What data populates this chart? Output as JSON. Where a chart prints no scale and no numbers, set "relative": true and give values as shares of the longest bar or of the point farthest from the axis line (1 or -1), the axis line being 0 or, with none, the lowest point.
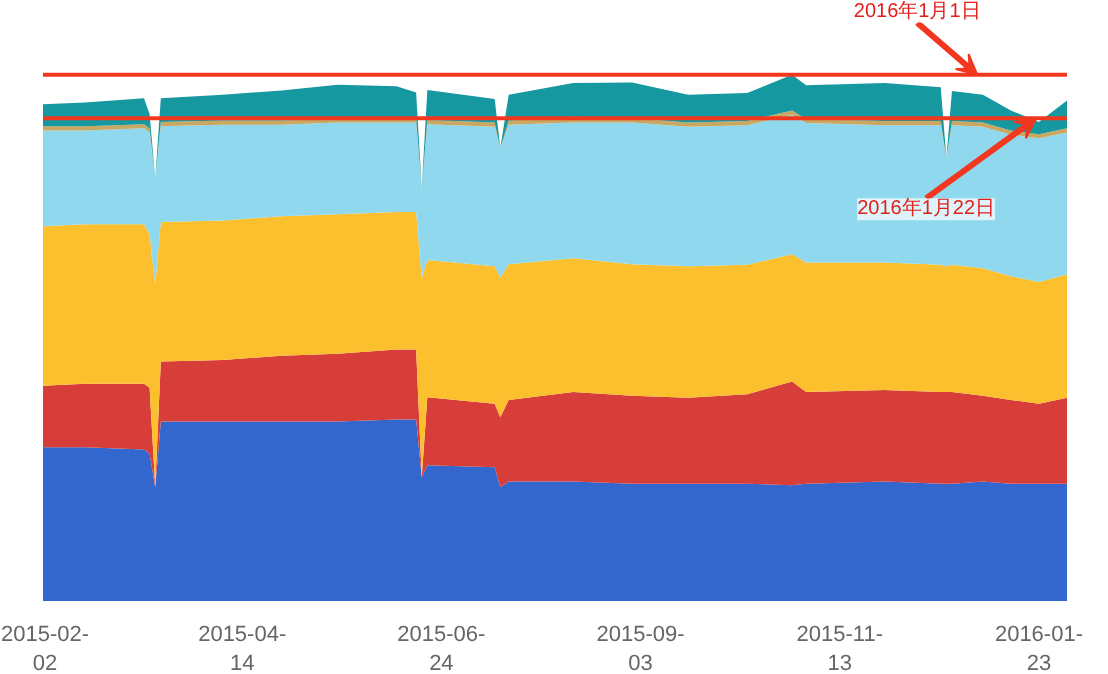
{
  "chart_data": {
    "type": "area",
    "stacked": true,
    "relative": true,
    "grid": false,
    "x": [
      "2015-02-02",
      "2015-02-17",
      "2015-03-10",
      "2015-03-12",
      "2015-03-14",
      "2015-03-16",
      "2015-04-07",
      "2015-04-28",
      "2015-05-18",
      "2015-06-08",
      "2015-06-15",
      "2015-06-17",
      "2015-06-19",
      "2015-07-13",
      "2015-07-15",
      "2015-07-18",
      "2015-08-10",
      "2015-08-31",
      "2015-09-20",
      "2015-10-11",
      "2015-10-27",
      "2015-11-01",
      "2015-11-29",
      "2015-12-19",
      "2015-12-21",
      "2015-12-23",
      "2016-01-03",
      "2016-01-13",
      "2016-01-23",
      "2016-02-02"
    ],
    "xlim": [
      "2015-02-02",
      "2016-02-02"
    ],
    "xticks": [
      "2015-02-02",
      "2015-04-14",
      "2015-06-24",
      "2015-09-03",
      "2015-11-13",
      "2016-01-23"
    ],
    "series": [
      {
        "color": "#3367cd",
        "values": [
          0.292,
          0.292,
          0.288,
          0.28,
          0.216,
          0.341,
          0.341,
          0.341,
          0.341,
          0.345,
          0.345,
          0.235,
          0.258,
          0.254,
          0.216,
          0.227,
          0.227,
          0.223,
          0.223,
          0.223,
          0.22,
          0.223,
          0.227,
          0.223,
          0.223,
          0.223,
          0.227,
          0.223,
          0.223,
          0.223
        ]
      },
      {
        "color": "#d73e3a",
        "values": [
          0.117,
          0.121,
          0.125,
          0.125,
          0,
          0.114,
          0.117,
          0.125,
          0.129,
          0.133,
          0.133,
          0,
          0.129,
          0.121,
          0.133,
          0.155,
          0.17,
          0.167,
          0.163,
          0.17,
          0.197,
          0.174,
          0.174,
          0.174,
          0.174,
          0.174,
          0.163,
          0.159,
          0.152,
          0.163
        ]
      },
      {
        "color": "#fcc02e",
        "values": [
          0.303,
          0.303,
          0.303,
          0.292,
          0.386,
          0.265,
          0.265,
          0.265,
          0.265,
          0.261,
          0.261,
          0.379,
          0.261,
          0.261,
          0.265,
          0.258,
          0.254,
          0.25,
          0.25,
          0.246,
          0.242,
          0.246,
          0.242,
          0.242,
          0.239,
          0.242,
          0.242,
          0.235,
          0.231,
          0.235
        ]
      },
      {
        "color": "#8fd8ed",
        "values": [
          0.182,
          0.178,
          0.182,
          0.193,
          0.201,
          0.182,
          0.182,
          0.174,
          0.174,
          0.17,
          0.17,
          0.17,
          0.258,
          0.265,
          0.246,
          0.265,
          0.258,
          0.269,
          0.265,
          0.265,
          0.265,
          0.265,
          0.261,
          0.265,
          0.205,
          0.265,
          0.269,
          0.269,
          0.273,
          0.269
        ]
      },
      {
        "color": "#c8a862",
        "values": [
          0.008,
          0.008,
          0.008,
          0.008,
          0,
          0.008,
          0.008,
          0.008,
          0.008,
          0.008,
          0.008,
          0,
          0.008,
          0.008,
          0,
          0.008,
          0.011,
          0.008,
          0.008,
          0.008,
          0.008,
          0.008,
          0.008,
          0.008,
          0,
          0.008,
          0.008,
          0.008,
          0.008,
          0.008
        ]
      },
      {
        "color": "#15989f",
        "values": [
          0.042,
          0.045,
          0.049,
          0.027,
          0,
          0.045,
          0.049,
          0.057,
          0.064,
          0.061,
          0.049,
          0,
          0.057,
          0.045,
          0,
          0.049,
          0.064,
          0.068,
          0.053,
          0.053,
          0.068,
          0.064,
          0.072,
          0.064,
          0,
          0.057,
          0.053,
          0.038,
          0.023,
          0.053
        ]
      }
    ],
    "ref_lines": [
      {
        "axis": "y",
        "value": 1.0,
        "color": "#f2371f"
      },
      {
        "axis": "y",
        "value": 0.917,
        "color": "#f2371f"
      }
    ],
    "annotations": [
      {
        "text": "2016年1月1日",
        "x": "2016-01-01",
        "y": 1.0
      },
      {
        "text": "2016年1月22日",
        "x": "2016-01-22",
        "y": 0.917
      }
    ]
  }
}
